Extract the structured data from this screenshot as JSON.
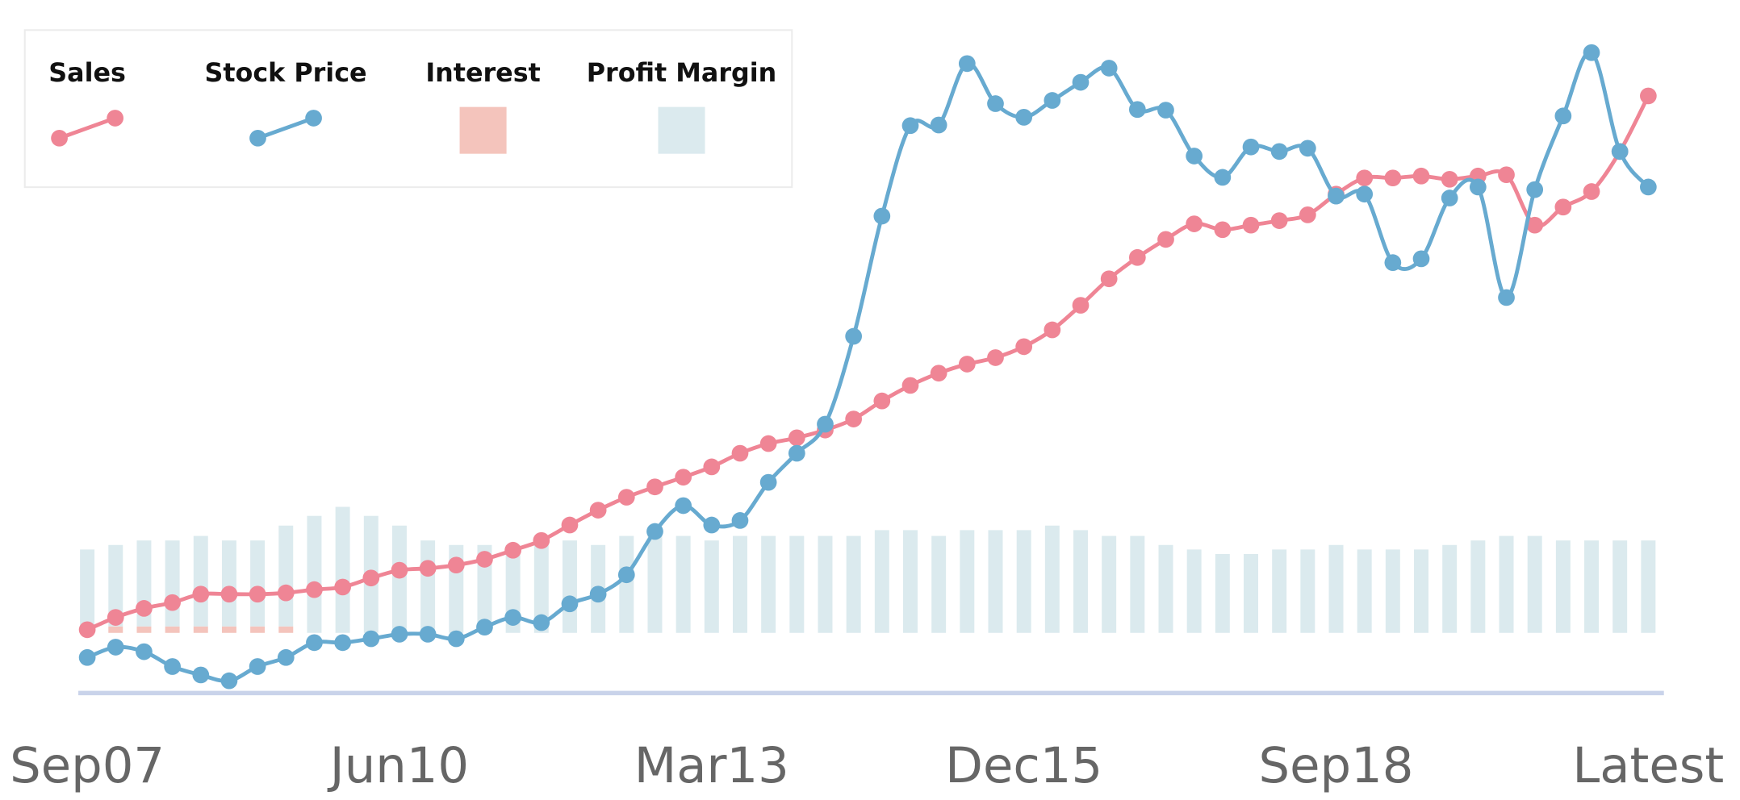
{
  "chart_data": {
    "type": "line",
    "categories": [
      "Sep07",
      null,
      null,
      null,
      null,
      null,
      null,
      null,
      null,
      null,
      null,
      "Jun10",
      null,
      null,
      null,
      null,
      null,
      null,
      null,
      null,
      null,
      null,
      "Mar13",
      null,
      null,
      null,
      null,
      null,
      null,
      null,
      null,
      null,
      null,
      "Dec15",
      null,
      null,
      null,
      null,
      null,
      null,
      null,
      null,
      null,
      null,
      "Sep18",
      null,
      null,
      null,
      null,
      null,
      null,
      null,
      null,
      null,
      null,
      "Latest"
    ],
    "ylim": [
      0,
      100
    ],
    "y2lim": [
      0,
      100
    ],
    "stacked": true,
    "legend": "upper left",
    "series": [
      {
        "name": "Sales",
        "type": "line",
        "color": "#ef8595",
        "values": [
          9.8,
          11.7,
          13.1,
          14,
          15.3,
          15.3,
          15.3,
          15.5,
          16,
          16.4,
          17.8,
          19,
          19.3,
          19.8,
          20.7,
          22.1,
          23.6,
          26,
          28.3,
          30.3,
          31.9,
          33.4,
          35,
          37.1,
          38.6,
          39.5,
          40.7,
          42.4,
          45.2,
          47.6,
          49.5,
          50.9,
          51.9,
          53.6,
          56.2,
          60,
          64.1,
          67.4,
          70.2,
          72.6,
          71.7,
          72.4,
          73.1,
          74,
          77.2,
          79.7,
          79.7,
          80,
          79.5,
          80,
          80.2,
          72.4,
          75.2,
          77.6,
          83.8,
          92.4
        ]
      },
      {
        "name": "Stock Price",
        "type": "line",
        "color": "#67aad0",
        "values": [
          5.5,
          7.1,
          6.4,
          4.1,
          2.8,
          1.9,
          4.1,
          5.5,
          7.8,
          7.8,
          8.4,
          9.1,
          9.1,
          8.4,
          10.2,
          11.7,
          10.9,
          13.8,
          15.3,
          18.3,
          25,
          29,
          26,
          26.7,
          32.6,
          37.1,
          41.6,
          55.2,
          73.8,
          87.8,
          87.9,
          97.4,
          91.2,
          89.1,
          91.7,
          94.5,
          96.7,
          90.3,
          90.2,
          83.1,
          79.8,
          84.5,
          83.8,
          84.3,
          76.9,
          77.2,
          66.6,
          67.2,
          76.6,
          78.3,
          61.2,
          77.9,
          89.3,
          99.1,
          83.8,
          78.3
        ]
      },
      {
        "name": "Interest",
        "type": "bar",
        "axis": "y2",
        "color": "#f4c4bc",
        "values": [
          0,
          1,
          1,
          1,
          1,
          1,
          1,
          1,
          0,
          0,
          0,
          0,
          0,
          0,
          0,
          0,
          0,
          0,
          0,
          0,
          0,
          0,
          0,
          0,
          0,
          0,
          0,
          0,
          0,
          0,
          0,
          0,
          0,
          0,
          0,
          0,
          0,
          0,
          0,
          0,
          0,
          0,
          0,
          0,
          0,
          0,
          0,
          0,
          0,
          0,
          0,
          0,
          0,
          0,
          0,
          0
        ]
      },
      {
        "name": "Profit Margin",
        "type": "bar",
        "axis": "y2",
        "color": "#dbeaee",
        "values": [
          12.9,
          12.6,
          13.3,
          13.3,
          14,
          13.3,
          13.3,
          15.6,
          18.1,
          19.5,
          18.1,
          16.6,
          14.3,
          13.6,
          13.6,
          13.6,
          14.3,
          14.3,
          13.6,
          15,
          15,
          15,
          14.3,
          15,
          15,
          15,
          15,
          15,
          15.9,
          15.9,
          15,
          15.9,
          15.9,
          15.9,
          16.6,
          15.9,
          15,
          15,
          13.6,
          12.9,
          12.2,
          12.2,
          12.9,
          12.9,
          13.6,
          12.9,
          12.9,
          12.9,
          13.6,
          14.3,
          15,
          15,
          14.3,
          14.3,
          14.3,
          14.3
        ]
      }
    ]
  }
}
